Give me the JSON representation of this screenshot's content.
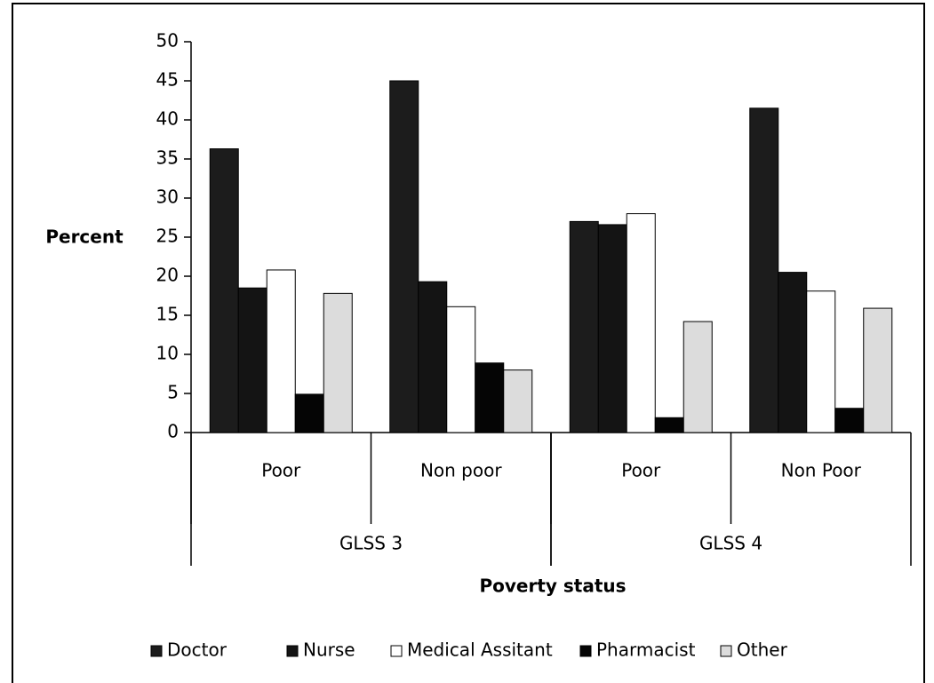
{
  "chart_data": {
    "type": "bar",
    "y_label": "Percent",
    "x_label": "Poverty status",
    "categories": [
      "Poor",
      "Non  poor",
      "Poor",
      "Non Poor"
    ],
    "category_groups": [
      {
        "label": "GLSS 3",
        "span": 2
      },
      {
        "label": "GLSS 4",
        "span": 2
      }
    ],
    "series": [
      {
        "name": "Doctor",
        "color": "#1c1c1c",
        "values": [
          36.3,
          45,
          27,
          41.5
        ]
      },
      {
        "name": "Nurse",
        "color": "#141414",
        "values": [
          18.5,
          19.3,
          26.6,
          20.5
        ]
      },
      {
        "name": "Medical Assitant",
        "color": "#ffffff",
        "values": [
          20.8,
          16.1,
          28,
          18.1
        ]
      },
      {
        "name": "Pharmacist",
        "color": "#050505",
        "values": [
          4.9,
          8.9,
          1.9,
          3.1
        ]
      },
      {
        "name": "Other",
        "color": "#dcdcdc",
        "values": [
          17.8,
          8,
          14.2,
          15.9
        ]
      }
    ],
    "ylim": [
      0,
      50
    ],
    "yticks": [
      0,
      5,
      10,
      15,
      20,
      25,
      30,
      35,
      40,
      45,
      50
    ],
    "legend": "bottom"
  }
}
